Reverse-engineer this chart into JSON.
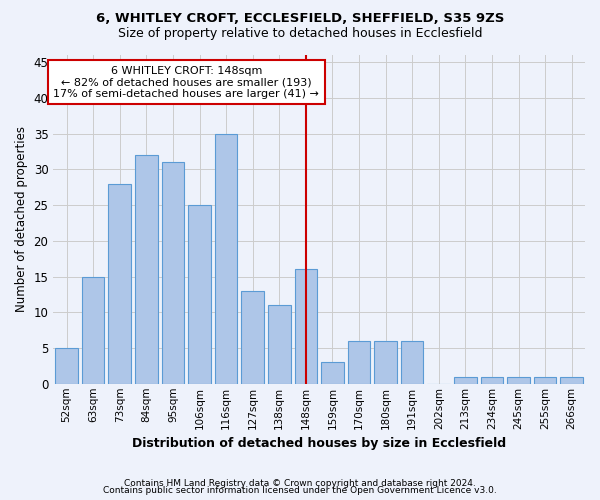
{
  "title1": "6, WHITLEY CROFT, ECCLESFIELD, SHEFFIELD, S35 9ZS",
  "title2": "Size of property relative to detached houses in Ecclesfield",
  "xlabel": "Distribution of detached houses by size in Ecclesfield",
  "ylabel": "Number of detached properties",
  "footnote1": "Contains HM Land Registry data © Crown copyright and database right 2024.",
  "footnote2": "Contains public sector information licensed under the Open Government Licence v3.0.",
  "categories": [
    "52sqm",
    "63sqm",
    "73sqm",
    "84sqm",
    "95sqm",
    "106sqm",
    "116sqm",
    "127sqm",
    "138sqm",
    "148sqm",
    "159sqm",
    "170sqm",
    "180sqm",
    "191sqm",
    "202sqm",
    "213sqm",
    "234sqm",
    "245sqm",
    "255sqm",
    "266sqm"
  ],
  "values": [
    5,
    15,
    28,
    32,
    31,
    25,
    35,
    13,
    11,
    16,
    3,
    6,
    6,
    6,
    0,
    1,
    1,
    1,
    1,
    1
  ],
  "bar_color": "#aec6e8",
  "bar_edge_color": "#5b9bd5",
  "highlight_index": 9,
  "vline_color": "#cc0000",
  "annotation_title": "6 WHITLEY CROFT: 148sqm",
  "annotation_line1": "← 82% of detached houses are smaller (193)",
  "annotation_line2": "17% of semi-detached houses are larger (41) →",
  "annotation_box_color": "#ffffff",
  "annotation_border_color": "#cc0000",
  "ylim": [
    0,
    46
  ],
  "yticks": [
    0,
    5,
    10,
    15,
    20,
    25,
    30,
    35,
    40,
    45
  ],
  "grid_color": "#cccccc",
  "bg_color": "#eef2fb"
}
